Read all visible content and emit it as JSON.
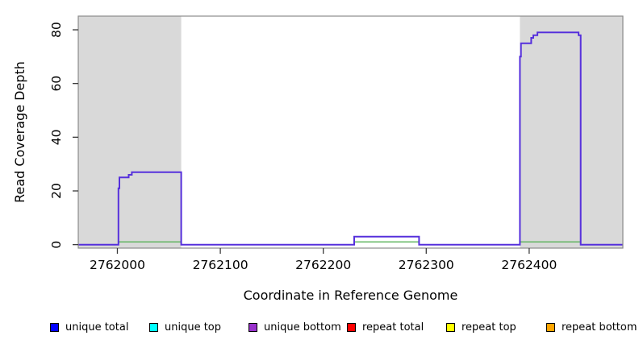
{
  "chart_data": {
    "type": "line",
    "subtype": "step-coverage",
    "title": "",
    "xlabel": "Coordinate in Reference Genome",
    "ylabel": "Read Coverage Depth",
    "x_ticks": [
      2762000,
      2762100,
      2762200,
      2762300,
      2762400
    ],
    "y_ticks": [
      0,
      20,
      40,
      60,
      80
    ],
    "x_range": [
      2761962,
      2762491
    ],
    "y_range": [
      -1.3,
      85.1
    ],
    "grid": false,
    "shaded_regions": {
      "color": "#D9D9D9",
      "regions": [
        [
          2761962,
          2762062
        ],
        [
          2762391,
          2762491
        ]
      ]
    },
    "series": [
      {
        "name": "unique coverage outline (unique total / unique bottom overlaid)",
        "color": "#5630DC",
        "type": "step",
        "points": [
          [
            2761962,
            0
          ],
          [
            2762001,
            0
          ],
          [
            2762001,
            21
          ],
          [
            2762002,
            21
          ],
          [
            2762002,
            25
          ],
          [
            2762011,
            25
          ],
          [
            2762011,
            26
          ],
          [
            2762014,
            26
          ],
          [
            2762014,
            27
          ],
          [
            2762062,
            27
          ],
          [
            2762062,
            0
          ],
          [
            2762230,
            0
          ],
          [
            2762230,
            3
          ],
          [
            2762293,
            3
          ],
          [
            2762293,
            0
          ],
          [
            2762391,
            0
          ],
          [
            2762391,
            70
          ],
          [
            2762392,
            70
          ],
          [
            2762392,
            75
          ],
          [
            2762402,
            75
          ],
          [
            2762402,
            77
          ],
          [
            2762404,
            77
          ],
          [
            2762404,
            78
          ],
          [
            2762408,
            78
          ],
          [
            2762408,
            79
          ],
          [
            2762448,
            79
          ],
          [
            2762448,
            78
          ],
          [
            2762450,
            78
          ],
          [
            2762450,
            0
          ],
          [
            2762491,
            0
          ]
        ]
      },
      {
        "name": "low green baseline line under covered regions",
        "color": "#55B055",
        "type": "segments",
        "y": 1,
        "segments": [
          [
            2762001,
            2762062
          ],
          [
            2762230,
            2762293
          ],
          [
            2762391,
            2762450
          ]
        ]
      }
    ],
    "colors": {
      "plot_background": "#FFFFFF",
      "box_border": "#8C8C8C",
      "tick": "#3A3A3A",
      "tick_label": "#000000"
    }
  },
  "legend": {
    "position": "bottom",
    "items": [
      {
        "label": "unique total",
        "color": "#0000FF"
      },
      {
        "label": "unique top",
        "color": "#00FFFF"
      },
      {
        "label": "unique bottom",
        "color": "#9932CC"
      },
      {
        "label": "repeat total",
        "color": "#FF0000"
      },
      {
        "label": "repeat top",
        "color": "#FFFF00"
      },
      {
        "label": "repeat bottom",
        "color": "#FFA500"
      }
    ]
  }
}
